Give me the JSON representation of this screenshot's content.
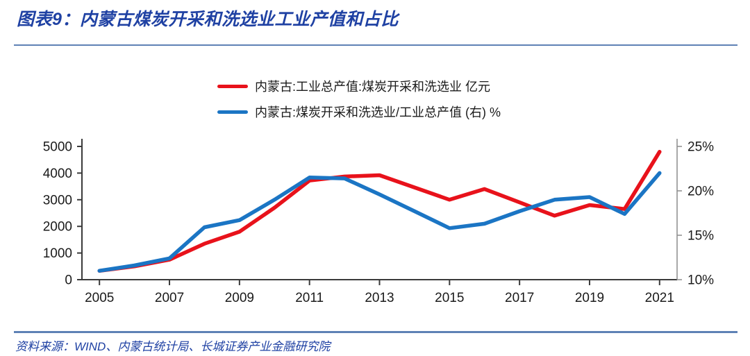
{
  "title": "图表9：内蒙古煤炭开采和洗选业工业产值和占比",
  "source_note": "资料来源：WIND、内蒙古统计局、长城证券产业金融研究院",
  "colors": {
    "title_blue": "#1f41a3",
    "divider_blue": "#5e81b5",
    "series_red": "#e8121b",
    "series_blue": "#1b75c4",
    "axis_dark": "#3a3a3a",
    "axis_gray": "#8c8c8c",
    "tick_text": "#1a1a1a"
  },
  "legend": [
    {
      "label": "内蒙古:工业总产值:煤炭开采和洗选业 亿元"
    },
    {
      "label": "内蒙古:煤炭开采和洗选业/工业总产值 (右) %"
    }
  ],
  "chart_data": {
    "type": "line",
    "x": [
      2005,
      2006,
      2007,
      2008,
      2009,
      2010,
      2011,
      2012,
      2013,
      2014,
      2015,
      2016,
      2017,
      2018,
      2019,
      2020,
      2021
    ],
    "x_tick_labels": [
      "2005",
      "2007",
      "2009",
      "2011",
      "2013",
      "2015",
      "2017",
      "2019",
      "2021"
    ],
    "series": [
      {
        "name": "内蒙古:工业总产值:煤炭开采和洗选业 亿元",
        "axis": "left",
        "color": "#e8121b",
        "values": [
          330,
          500,
          750,
          1350,
          1800,
          2700,
          3720,
          3870,
          3920,
          3460,
          3000,
          3400,
          2900,
          2400,
          2800,
          2650,
          4800
        ]
      },
      {
        "name": "内蒙古:煤炭开采和洗选业/工业总产值 (右) %",
        "axis": "right",
        "color": "#1b75c4",
        "values": [
          11.0,
          11.6,
          12.4,
          15.9,
          16.7,
          19.0,
          21.5,
          21.4,
          19.6,
          17.7,
          15.8,
          16.3,
          17.7,
          19.0,
          19.3,
          17.4,
          22.0
        ]
      }
    ],
    "left_axis": {
      "min": 0,
      "max": 5000,
      "ticks": [
        0,
        1000,
        2000,
        3000,
        4000,
        5000
      ],
      "suffix": ""
    },
    "right_axis": {
      "min": 10,
      "max": 25,
      "ticks": [
        10,
        15,
        20,
        25
      ],
      "suffix": "%"
    },
    "grid": false,
    "legend_position": "top-center"
  }
}
